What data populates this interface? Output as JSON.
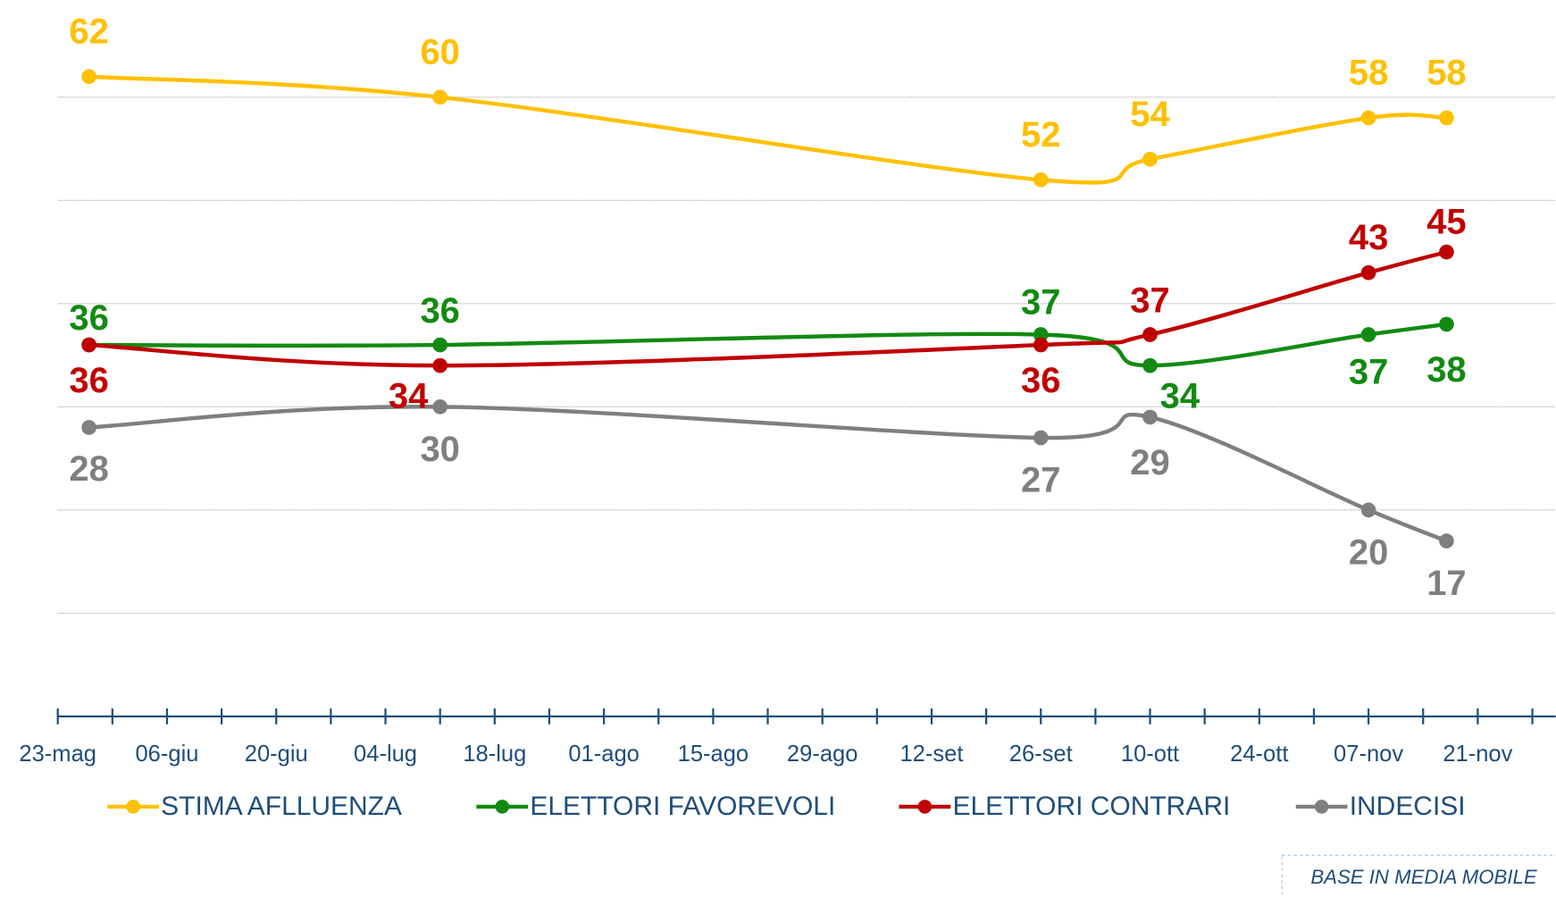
{
  "chart_data": {
    "type": "line",
    "x": [
      4,
      49,
      126,
      140,
      168,
      178
    ],
    "xlim": [
      0,
      192
    ],
    "xticks": [
      {
        "value": 0,
        "label": "23-mag"
      },
      {
        "value": 14,
        "label": "06-giu"
      },
      {
        "value": 28,
        "label": "20-giu"
      },
      {
        "value": 42,
        "label": "04-lug"
      },
      {
        "value": 56,
        "label": "18-lug"
      },
      {
        "value": 70,
        "label": "01-ago"
      },
      {
        "value": 84,
        "label": "15-ago"
      },
      {
        "value": 98,
        "label": "29-ago"
      },
      {
        "value": 112,
        "label": "12-set"
      },
      {
        "value": 126,
        "label": "26-set"
      },
      {
        "value": 140,
        "label": "10-ott"
      },
      {
        "value": 154,
        "label": "24-ott"
      },
      {
        "value": 168,
        "label": "07-nov"
      },
      {
        "value": 182,
        "label": "21-nov"
      }
    ],
    "ylim": [
      0,
      70
    ],
    "yticks": [
      10,
      20,
      30,
      40,
      50,
      60
    ],
    "grid": true,
    "series": [
      {
        "name": "STIMA AFLLUENZA",
        "color": "#ffc000",
        "values": [
          62,
          60,
          52,
          54,
          58,
          58
        ]
      },
      {
        "name": "ELETTORI FAVOREVOLI",
        "color": "#128a12",
        "values": [
          36,
          36,
          37,
          34,
          37,
          38
        ]
      },
      {
        "name": "ELETTORI CONTRARI",
        "color": "#c00000",
        "values": [
          36,
          34,
          36,
          37,
          43,
          45
        ]
      },
      {
        "name": "INDECISI",
        "color": "#7f7f7f",
        "values": [
          28,
          30,
          27,
          29,
          20,
          17
        ]
      }
    ],
    "note": "BASE IN MEDIA MOBILE"
  }
}
